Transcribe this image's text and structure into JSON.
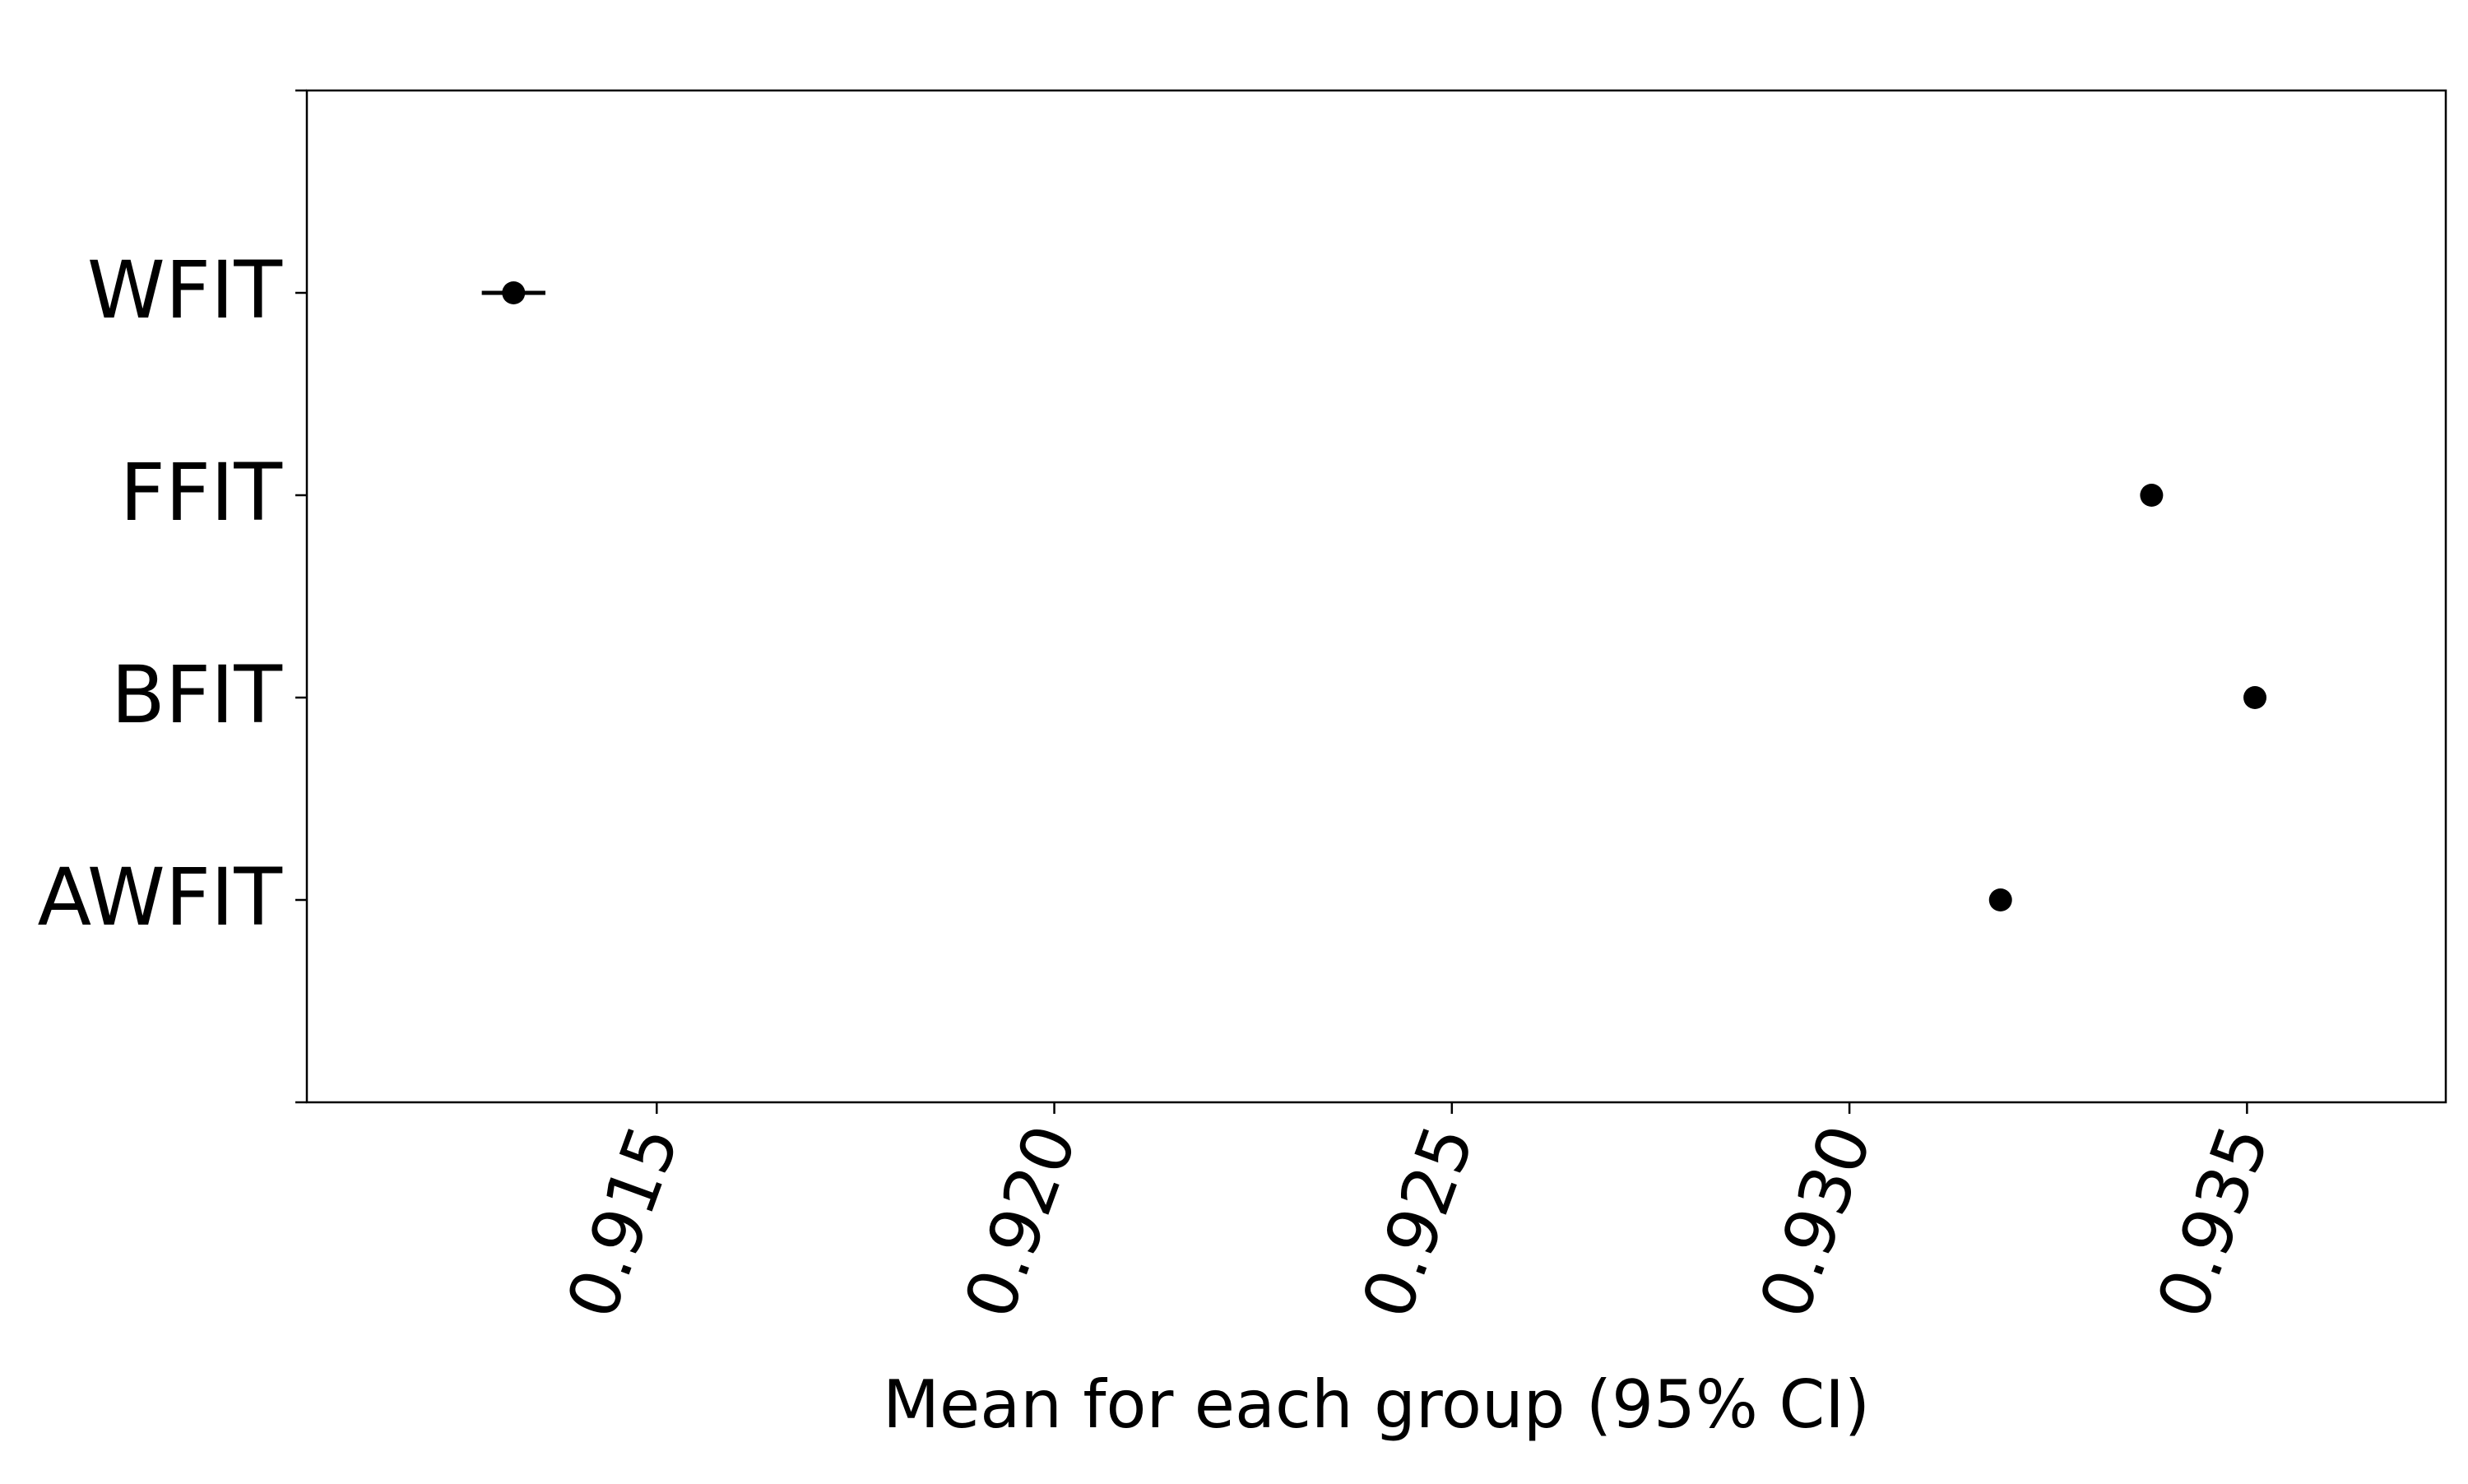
{
  "chart_data": {
    "type": "scatter",
    "subtype": "point-estimate-with-ci",
    "title": "",
    "xlabel": "Mean for each group (95% CI)",
    "ylabel": "",
    "xlim": [
      0.9106,
      0.9375
    ],
    "xticks": [
      0.915,
      0.92,
      0.925,
      0.93,
      0.935
    ],
    "xtick_labels": [
      "0.915",
      "0.920",
      "0.925",
      "0.930",
      "0.935"
    ],
    "xtick_rotation_deg": -70,
    "categories": [
      "WFIT",
      "FFIT",
      "BFIT",
      "AWFIT"
    ],
    "points": [
      {
        "label": "WFIT",
        "mean": 0.9132,
        "ci_low": 0.9128,
        "ci_high": 0.9136
      },
      {
        "label": "FFIT",
        "mean": 0.9338,
        "ci_low": 0.9338,
        "ci_high": 0.9338
      },
      {
        "label": "BFIT",
        "mean": 0.9351,
        "ci_low": 0.9351,
        "ci_high": 0.9351
      },
      {
        "label": "AWFIT",
        "mean": 0.9319,
        "ci_low": 0.9319,
        "ci_high": 0.9319
      }
    ],
    "grid": false,
    "legend": "none",
    "marker_color": "#000000",
    "axis_color": "#000000"
  }
}
